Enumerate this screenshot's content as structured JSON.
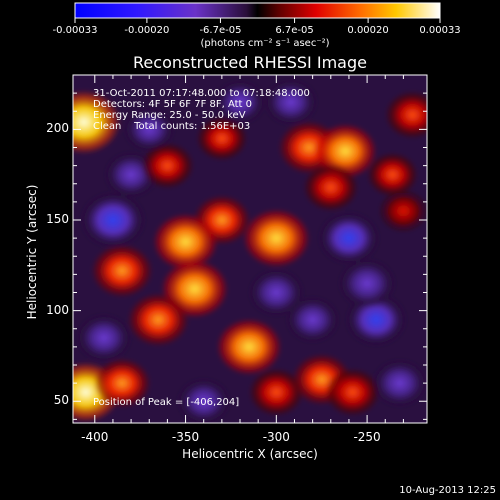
{
  "colorbar": {
    "tick_labels": [
      "-0.00033",
      "-0.00020",
      "-6.7e-05",
      "6.7e-05",
      "0.00020",
      "0.00033"
    ],
    "unit_label": "(photons cm⁻² s⁻¹ asec⁻²)",
    "range": [
      -0.00033,
      0.00033
    ]
  },
  "annotations": {
    "time_range": "31-Oct-2011 07:17:48.000 to 07:18:48.000",
    "detectors": "Detectors: 4F 5F 6F 7F 8F, Att 0",
    "energy_range": "Energy Range: 25.0 - 50.0 keV",
    "clean_counts": "Clean    Total counts: 1.56E+03",
    "peak_position": "Position of Peak = [-406,204]"
  },
  "footer": {
    "date_stamp": "10-Aug-2013 12:25"
  },
  "chart_data": {
    "type": "heatmap",
    "title": "Reconstructed RHESSI Image",
    "xlabel": "Heliocentric X (arcsec)",
    "ylabel": "Heliocentric Y (arcsec)",
    "xlim": [
      -412,
      -217
    ],
    "ylim": [
      38,
      230
    ],
    "x_ticks": [
      -400,
      -350,
      -300,
      -250
    ],
    "y_ticks": [
      50,
      100,
      150,
      200
    ],
    "x_tick_labels": [
      "-400",
      "-350",
      "-300",
      "-250"
    ],
    "y_tick_labels": [
      "50",
      "100",
      "150",
      "200"
    ],
    "colormap": "rhessi-diverging (blue-purple-black-red-orange-yellow-white)",
    "peak": {
      "x": -406,
      "y": 204
    },
    "features": [
      {
        "x": -406,
        "y": 204,
        "value": 1.0
      },
      {
        "x": -405,
        "y": 55,
        "value": 0.9
      },
      {
        "x": -282,
        "y": 190,
        "value": 0.7
      },
      {
        "x": -262,
        "y": 188,
        "value": 0.75
      },
      {
        "x": -225,
        "y": 208,
        "value": 0.55
      },
      {
        "x": -300,
        "y": 140,
        "value": 0.85
      },
      {
        "x": -330,
        "y": 150,
        "value": 0.6
      },
      {
        "x": -350,
        "y": 138,
        "value": 0.8
      },
      {
        "x": -345,
        "y": 112,
        "value": 0.85
      },
      {
        "x": -365,
        "y": 95,
        "value": 0.7
      },
      {
        "x": -385,
        "y": 122,
        "value": 0.7
      },
      {
        "x": -315,
        "y": 80,
        "value": 0.8
      },
      {
        "x": -300,
        "y": 55,
        "value": 0.55
      },
      {
        "x": -385,
        "y": 60,
        "value": 0.6
      },
      {
        "x": -360,
        "y": 180,
        "value": 0.5
      },
      {
        "x": -330,
        "y": 195,
        "value": 0.45
      },
      {
        "x": -275,
        "y": 62,
        "value": 0.65
      },
      {
        "x": -258,
        "y": 55,
        "value": 0.55
      },
      {
        "x": -270,
        "y": 168,
        "value": 0.55
      },
      {
        "x": -230,
        "y": 155,
        "value": 0.4
      },
      {
        "x": -236,
        "y": 175,
        "value": 0.45
      },
      {
        "x": -390,
        "y": 150,
        "value": -0.8
      },
      {
        "x": -380,
        "y": 175,
        "value": -0.5
      },
      {
        "x": -370,
        "y": 200,
        "value": -0.45
      },
      {
        "x": -260,
        "y": 140,
        "value": -0.7
      },
      {
        "x": -300,
        "y": 110,
        "value": -0.55
      },
      {
        "x": -245,
        "y": 95,
        "value": -0.7
      },
      {
        "x": -250,
        "y": 115,
        "value": -0.6
      },
      {
        "x": -340,
        "y": 50,
        "value": -0.5
      },
      {
        "x": -395,
        "y": 85,
        "value": -0.55
      },
      {
        "x": -232,
        "y": 60,
        "value": -0.55
      },
      {
        "x": -280,
        "y": 95,
        "value": -0.5
      },
      {
        "x": -320,
        "y": 215,
        "value": -0.45
      },
      {
        "x": -292,
        "y": 215,
        "value": -0.5
      }
    ]
  }
}
